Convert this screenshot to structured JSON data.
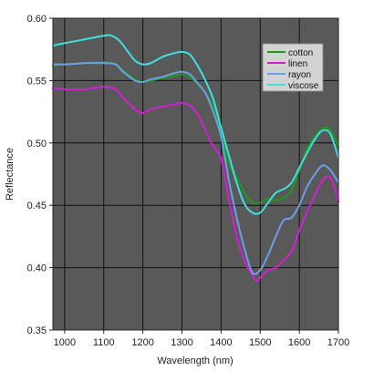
{
  "chart_data": {
    "type": "line",
    "xlabel": "Wavelength (nm)",
    "ylabel": "Reflectance",
    "xlim": [
      970,
      1700
    ],
    "ylim": [
      0.35,
      0.6
    ],
    "xticks": [
      1000,
      1100,
      1200,
      1300,
      1400,
      1500,
      1600,
      1700
    ],
    "yticks": [
      0.35,
      0.4,
      0.45,
      0.5,
      0.55,
      0.6
    ],
    "xtick_labels": [
      "1000",
      "1100",
      "1200",
      "1300",
      "1400",
      "1500",
      "1600",
      "1700"
    ],
    "ytick_labels": [
      "0.35",
      "0.40",
      "0.45",
      "0.50",
      "0.55",
      "0.60"
    ],
    "grid": true,
    "plot_background": "#595959",
    "legend_position": "top-right",
    "series": [
      {
        "name": "cotton",
        "color": "#1f9a1f",
        "x": [
          970,
          1000,
          1050,
          1100,
          1130,
          1150,
          1180,
          1200,
          1220,
          1250,
          1280,
          1300,
          1320,
          1340,
          1360,
          1380,
          1400,
          1420,
          1440,
          1460,
          1480,
          1500,
          1520,
          1540,
          1560,
          1580,
          1600,
          1620,
          1640,
          1660,
          1680,
          1700
        ],
        "y": [
          0.562,
          0.563,
          0.564,
          0.565,
          0.563,
          0.558,
          0.551,
          0.549,
          0.55,
          0.552,
          0.554,
          0.555,
          0.553,
          0.547,
          0.54,
          0.53,
          0.51,
          0.483,
          0.472,
          0.46,
          0.452,
          0.452,
          0.455,
          0.454,
          0.456,
          0.462,
          0.478,
          0.495,
          0.505,
          0.512,
          0.51,
          0.497
        ]
      },
      {
        "name": "linen",
        "color": "#d21fd2",
        "x": [
          970,
          1000,
          1050,
          1100,
          1130,
          1150,
          1180,
          1200,
          1220,
          1250,
          1280,
          1300,
          1320,
          1340,
          1360,
          1380,
          1400,
          1420,
          1440,
          1460,
          1480,
          1490,
          1500,
          1520,
          1540,
          1560,
          1580,
          1600,
          1620,
          1640,
          1660,
          1680,
          1700
        ],
        "y": [
          0.544,
          0.543,
          0.543,
          0.545,
          0.543,
          0.536,
          0.527,
          0.524,
          0.527,
          0.529,
          0.531,
          0.532,
          0.53,
          0.523,
          0.51,
          0.497,
          0.487,
          0.455,
          0.425,
          0.405,
          0.394,
          0.389,
          0.392,
          0.398,
          0.4,
          0.406,
          0.413,
          0.43,
          0.445,
          0.458,
          0.47,
          0.472,
          0.453
        ]
      },
      {
        "name": "rayon",
        "color": "#6aa0e8",
        "x": [
          970,
          1000,
          1050,
          1100,
          1130,
          1150,
          1180,
          1200,
          1220,
          1250,
          1280,
          1300,
          1320,
          1340,
          1360,
          1380,
          1400,
          1420,
          1440,
          1460,
          1480,
          1500,
          1520,
          1540,
          1560,
          1580,
          1600,
          1620,
          1640,
          1660,
          1680,
          1700
        ],
        "y": [
          0.563,
          0.563,
          0.564,
          0.564,
          0.563,
          0.557,
          0.55,
          0.549,
          0.551,
          0.553,
          0.556,
          0.557,
          0.555,
          0.548,
          0.54,
          0.525,
          0.505,
          0.47,
          0.44,
          0.415,
          0.396,
          0.398,
          0.41,
          0.425,
          0.438,
          0.44,
          0.45,
          0.465,
          0.475,
          0.482,
          0.478,
          0.468
        ]
      },
      {
        "name": "viscose",
        "color": "#3fe0e0",
        "x": [
          970,
          1000,
          1050,
          1100,
          1120,
          1140,
          1160,
          1180,
          1200,
          1220,
          1250,
          1280,
          1300,
          1320,
          1340,
          1360,
          1380,
          1400,
          1420,
          1440,
          1460,
          1480,
          1500,
          1520,
          1540,
          1560,
          1580,
          1600,
          1620,
          1640,
          1660,
          1680,
          1700
        ],
        "y": [
          0.578,
          0.58,
          0.583,
          0.586,
          0.586,
          0.582,
          0.574,
          0.566,
          0.563,
          0.564,
          0.569,
          0.572,
          0.573,
          0.571,
          0.562,
          0.55,
          0.535,
          0.512,
          0.49,
          0.468,
          0.451,
          0.444,
          0.444,
          0.452,
          0.46,
          0.463,
          0.468,
          0.48,
          0.492,
          0.503,
          0.51,
          0.507,
          0.488
        ]
      }
    ]
  }
}
